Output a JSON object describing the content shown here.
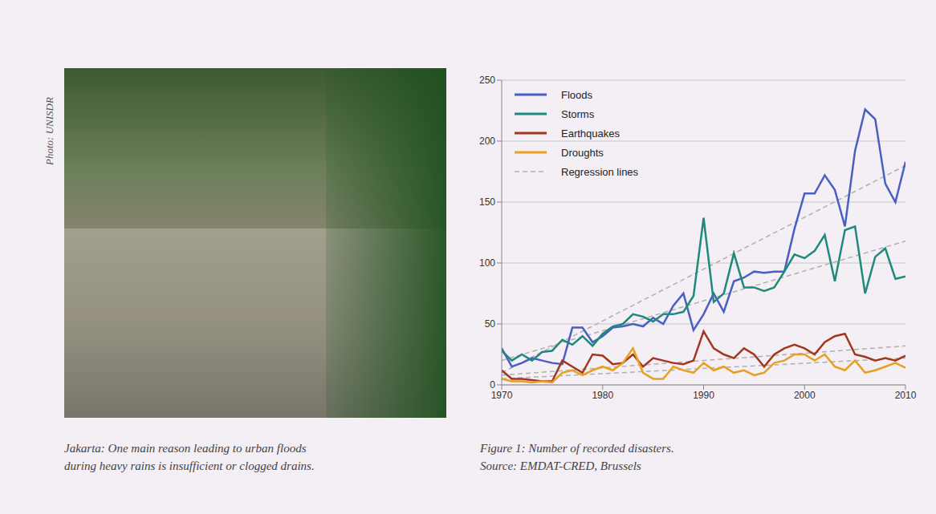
{
  "chart_data": {
    "type": "line",
    "caption": [
      "Figure 1: Number of recorded disasters.",
      "Source: EMDAT-CRED, Brussels"
    ],
    "x": [
      1970,
      1971,
      1972,
      1973,
      1974,
      1975,
      1976,
      1977,
      1978,
      1979,
      1980,
      1981,
      1982,
      1983,
      1984,
      1985,
      1986,
      1987,
      1988,
      1989,
      1990,
      1991,
      1992,
      1993,
      1994,
      1995,
      1996,
      1997,
      1998,
      1999,
      2000,
      2001,
      2002,
      2003,
      2004,
      2005,
      2006,
      2007,
      2008,
      2009,
      2010
    ],
    "series": [
      {
        "name": "Floods",
        "color": "#4a5fc1",
        "values": [
          30,
          15,
          18,
          22,
          20,
          18,
          17,
          47,
          47,
          35,
          40,
          47,
          48,
          50,
          48,
          55,
          50,
          65,
          75,
          45,
          58,
          75,
          60,
          85,
          88,
          93,
          92,
          93,
          93,
          128,
          157,
          157,
          172,
          160,
          130,
          192,
          226,
          218,
          165,
          150,
          183
        ]
      },
      {
        "name": "Storms",
        "color": "#1f8a7c",
        "values": [
          28,
          20,
          25,
          20,
          27,
          28,
          37,
          33,
          40,
          32,
          42,
          48,
          50,
          58,
          56,
          52,
          58,
          58,
          60,
          73,
          137,
          68,
          75,
          108,
          80,
          80,
          77,
          80,
          93,
          107,
          104,
          110,
          123,
          85,
          127,
          130,
          75,
          105,
          112,
          87,
          89
        ]
      },
      {
        "name": "Earthquakes",
        "color": "#a3361f",
        "values": [
          12,
          5,
          5,
          4,
          3,
          3,
          20,
          15,
          10,
          25,
          24,
          17,
          18,
          25,
          15,
          22,
          20,
          18,
          17,
          20,
          44,
          30,
          25,
          22,
          30,
          25,
          15,
          25,
          30,
          33,
          30,
          25,
          35,
          40,
          42,
          25,
          23,
          20,
          22,
          20,
          24
        ]
      },
      {
        "name": "Droughts",
        "color": "#e8a021",
        "values": [
          5,
          3,
          3,
          2,
          3,
          2,
          10,
          12,
          8,
          12,
          15,
          12,
          18,
          30,
          10,
          5,
          5,
          15,
          12,
          10,
          18,
          12,
          15,
          10,
          12,
          8,
          10,
          18,
          20,
          25,
          25,
          20,
          25,
          15,
          12,
          20,
          10,
          12,
          15,
          18,
          14
        ]
      }
    ],
    "regression_lines": {
      "name": "Regression lines",
      "color": "#b0b0b0",
      "line_style": "dashed",
      "x": [
        1970,
        2010
      ],
      "lines": [
        {
          "series": "Floods",
          "values": [
            10,
            180
          ]
        },
        {
          "series": "Storms",
          "values": [
            20,
            118
          ]
        },
        {
          "series": "Earthquakes",
          "values": [
            8,
            32
          ]
        },
        {
          "series": "Droughts",
          "values": [
            5,
            22
          ]
        }
      ]
    },
    "xlim": [
      1970,
      2010
    ],
    "xticks": [
      1970,
      1980,
      1990,
      2000,
      2010
    ],
    "ylim": [
      0,
      250
    ],
    "yticks": [
      0,
      50,
      100,
      150,
      200,
      250
    ],
    "grid": true,
    "legend": "top-left"
  },
  "photo": {
    "credit": "Photo: UNISDR",
    "caption": [
      "Jakarta: One main reason leading to urban floods",
      "during heavy rains is insufficient or clogged drains."
    ]
  }
}
